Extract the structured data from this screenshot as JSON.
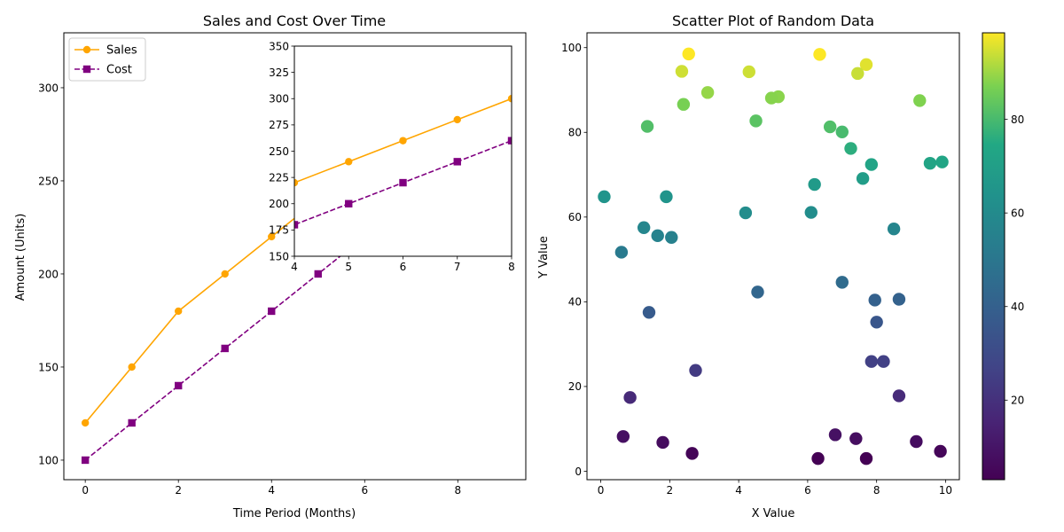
{
  "chart_data": [
    {
      "type": "line",
      "title": "Sales and Cost Over Time",
      "xlabel": "Time Period (Months)",
      "ylabel": "Amount (Units)",
      "xlim": [
        -0.46,
        9.46
      ],
      "ylim": [
        89.5,
        329.5
      ],
      "xticks": [
        0,
        2,
        4,
        6,
        8
      ],
      "yticks": [
        100,
        150,
        200,
        250,
        300
      ],
      "legend_position": "upper-left",
      "x": [
        0,
        1,
        2,
        3,
        4,
        5,
        6,
        7,
        8,
        9
      ],
      "series": [
        {
          "name": "Sales",
          "color": "#ffa500",
          "style": "solid",
          "marker": "circle",
          "values": [
            120,
            150,
            180,
            200,
            220,
            240,
            260,
            280,
            300,
            320
          ]
        },
        {
          "name": "Cost",
          "color": "#800080",
          "style": "dashed",
          "marker": "square",
          "values": [
            100,
            120,
            140,
            160,
            180,
            200,
            220,
            240,
            260,
            280
          ]
        }
      ],
      "inset": {
        "xlim": [
          4,
          8
        ],
        "ylim": [
          150,
          350
        ],
        "xticks": [
          4,
          5,
          6,
          7,
          8
        ],
        "yticks": [
          150,
          175,
          200,
          225,
          250,
          275,
          300,
          325,
          350
        ]
      }
    },
    {
      "type": "scatter",
      "title": "Scatter Plot of Random Data",
      "xlabel": "X Value",
      "ylabel": "Y Value",
      "xlim": [
        -0.4,
        10.4
      ],
      "ylim": [
        -2,
        103.5
      ],
      "xticks": [
        0,
        2,
        4,
        6,
        8,
        10
      ],
      "yticks": [
        0,
        20,
        40,
        60,
        80,
        100
      ],
      "colormap": "viridis",
      "colorbar_range": [
        3,
        98.5
      ],
      "colorbar_ticks": [
        20,
        40,
        60,
        80
      ],
      "points": [
        {
          "x": 2.55,
          "y": 98.5
        },
        {
          "x": 6.35,
          "y": 98.4
        },
        {
          "x": 7.7,
          "y": 96.0
        },
        {
          "x": 2.35,
          "y": 94.4
        },
        {
          "x": 4.3,
          "y": 94.3
        },
        {
          "x": 7.45,
          "y": 93.9
        },
        {
          "x": 3.1,
          "y": 89.4
        },
        {
          "x": 5.15,
          "y": 88.4
        },
        {
          "x": 4.95,
          "y": 88.1
        },
        {
          "x": 9.25,
          "y": 87.5
        },
        {
          "x": 2.4,
          "y": 86.6
        },
        {
          "x": 4.5,
          "y": 82.7
        },
        {
          "x": 1.35,
          "y": 81.4
        },
        {
          "x": 6.65,
          "y": 81.3
        },
        {
          "x": 7.0,
          "y": 80.1
        },
        {
          "x": 7.25,
          "y": 76.2
        },
        {
          "x": 9.9,
          "y": 73.0
        },
        {
          "x": 9.55,
          "y": 72.7
        },
        {
          "x": 7.85,
          "y": 72.4
        },
        {
          "x": 7.6,
          "y": 69.1
        },
        {
          "x": 6.2,
          "y": 67.7
        },
        {
          "x": 0.1,
          "y": 64.8
        },
        {
          "x": 1.9,
          "y": 64.8
        },
        {
          "x": 6.1,
          "y": 61.1
        },
        {
          "x": 4.2,
          "y": 61.0
        },
        {
          "x": 1.25,
          "y": 57.5
        },
        {
          "x": 8.5,
          "y": 57.2
        },
        {
          "x": 1.65,
          "y": 55.6
        },
        {
          "x": 2.05,
          "y": 55.2
        },
        {
          "x": 0.6,
          "y": 51.7
        },
        {
          "x": 7.0,
          "y": 44.6
        },
        {
          "x": 4.55,
          "y": 42.3
        },
        {
          "x": 8.65,
          "y": 40.6
        },
        {
          "x": 7.95,
          "y": 40.4
        },
        {
          "x": 1.4,
          "y": 37.5
        },
        {
          "x": 8.0,
          "y": 35.2
        },
        {
          "x": 7.85,
          "y": 25.9
        },
        {
          "x": 8.2,
          "y": 25.9
        },
        {
          "x": 2.75,
          "y": 23.8
        },
        {
          "x": 8.65,
          "y": 17.8
        },
        {
          "x": 0.85,
          "y": 17.4
        },
        {
          "x": 6.8,
          "y": 8.6
        },
        {
          "x": 0.65,
          "y": 8.2
        },
        {
          "x": 7.4,
          "y": 7.7
        },
        {
          "x": 9.15,
          "y": 7.0
        },
        {
          "x": 1.8,
          "y": 6.8
        },
        {
          "x": 9.85,
          "y": 4.7
        },
        {
          "x": 2.65,
          "y": 4.2
        },
        {
          "x": 6.3,
          "y": 3.0
        },
        {
          "x": 7.7,
          "y": 3.0
        }
      ]
    }
  ]
}
